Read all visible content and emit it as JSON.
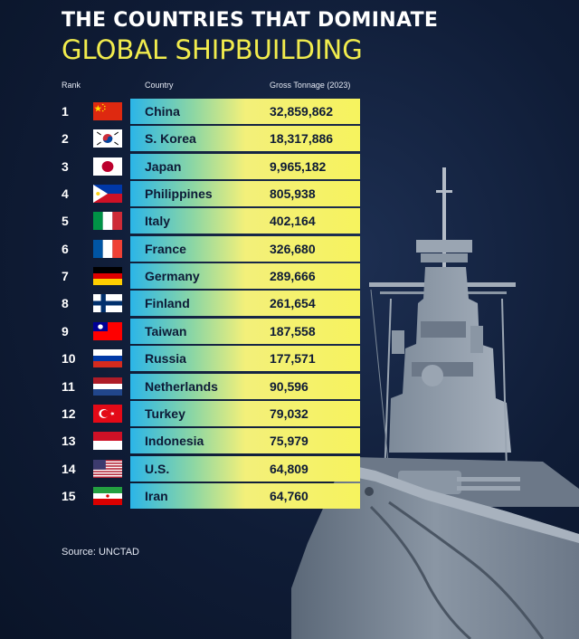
{
  "title_line1": "THE COUNTRIES THAT DOMINATE",
  "title_line2": "GLOBAL SHIPBUILDING",
  "headers": {
    "rank": "Rank",
    "country": "Country",
    "tonnage": "Gross Tonnage (2023)"
  },
  "source": "Source: UNCTAD",
  "colors": {
    "title_accent": "#f1ec4d",
    "bar_start": "#2bb5e8",
    "bar_end": "#f6f35e",
    "background": "#0f1c36"
  },
  "chart_data": {
    "type": "table",
    "title": "THE COUNTRIES THAT DOMINATE GLOBAL SHIPBUILDING",
    "columns": [
      "Rank",
      "Country",
      "Gross Tonnage (2023)"
    ],
    "rows": [
      {
        "rank": "1",
        "country": "China",
        "value": "32,859,862",
        "flag": "china"
      },
      {
        "rank": "2",
        "country": "S. Korea",
        "value": "18,317,886",
        "flag": "south-korea"
      },
      {
        "rank": "3",
        "country": "Japan",
        "value": "9,965,182",
        "flag": "japan"
      },
      {
        "rank": "4",
        "country": "Philippines",
        "value": "805,938",
        "flag": "philippines"
      },
      {
        "rank": "5",
        "country": "Italy",
        "value": "402,164",
        "flag": "italy"
      },
      {
        "rank": "6",
        "country": "France",
        "value": "326,680",
        "flag": "france"
      },
      {
        "rank": "7",
        "country": "Germany",
        "value": "289,666",
        "flag": "germany"
      },
      {
        "rank": "8",
        "country": "Finland",
        "value": "261,654",
        "flag": "finland"
      },
      {
        "rank": "9",
        "country": "Taiwan",
        "value": "187,558",
        "flag": "taiwan"
      },
      {
        "rank": "10",
        "country": "Russia",
        "value": "177,571",
        "flag": "russia"
      },
      {
        "rank": "11",
        "country": "Netherlands",
        "value": "90,596",
        "flag": "netherlands"
      },
      {
        "rank": "12",
        "country": "Turkey",
        "value": "79,032",
        "flag": "turkey"
      },
      {
        "rank": "13",
        "country": "Indonesia",
        "value": "75,979",
        "flag": "indonesia"
      },
      {
        "rank": "14",
        "country": "U.S.",
        "value": "64,809",
        "flag": "usa"
      },
      {
        "rank": "15",
        "country": "Iran",
        "value": "64,760",
        "flag": "iran"
      }
    ]
  }
}
